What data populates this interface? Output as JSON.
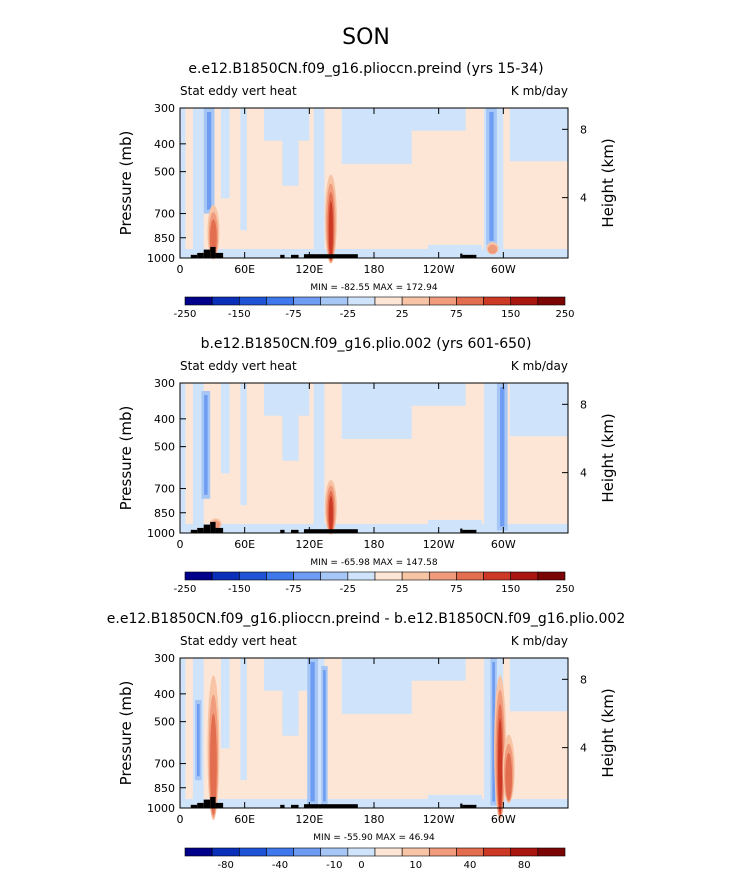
{
  "page_title": "SON",
  "colors": {
    "land": "#000000",
    "palette": [
      "#00008b",
      "#0a2fb8",
      "#1f53d6",
      "#3f78ec",
      "#6e9cf2",
      "#a6c6f5",
      "#cfe4fa",
      "#fde6d6",
      "#f8c4a6",
      "#f09c7c",
      "#e36d4f",
      "#cc3a25",
      "#a8160f",
      "#7b0505"
    ]
  },
  "chart_data": [
    {
      "type": "heatmap",
      "name": "panel-1",
      "title": "e.e12.B1850CN.f09_g16.plioccn.preind (yrs 15-34)",
      "left_label": "Stat eddy vert heat",
      "right_label": "K mb/day",
      "ylabel": "Pressure (mb)",
      "y2label": "Height (km)",
      "x_ticks": [
        "0",
        "60E",
        "120E",
        "180",
        "120W",
        "60W"
      ],
      "y_ticks": [
        "300",
        "400",
        "500",
        "700",
        "850",
        "1000"
      ],
      "y2_ticks": [
        "8",
        "4"
      ],
      "stats": "MIN = -82.55   MAX = 172.94",
      "colorbar_labels": [
        "-250",
        "-150",
        "-75",
        "-25",
        "25",
        "75",
        "150",
        "250"
      ],
      "hotspots": [
        {
          "lon": 31,
          "p_top": 620,
          "p_bot": 960,
          "v": 2
        },
        {
          "lon": 140,
          "p_top": 470,
          "p_bot": 960,
          "v": 3
        },
        {
          "lon": 290,
          "p_top": 870,
          "p_bot": 960,
          "v": 1
        }
      ],
      "coldspots": [
        {
          "lon_from": 22,
          "lon_to": 32,
          "p_top": 300,
          "p_bot": 700
        },
        {
          "lon_from": 284,
          "lon_to": 294,
          "p_top": 300,
          "p_bot": 900
        }
      ]
    },
    {
      "type": "heatmap",
      "name": "panel-2",
      "title": "b.e12.B1850CN.f09_g16.plio.002 (yrs 601-650)",
      "left_label": "Stat eddy vert heat",
      "right_label": "K mb/day",
      "ylabel": "Pressure (mb)",
      "y2label": "Height (km)",
      "x_ticks": [
        "0",
        "60E",
        "120E",
        "180",
        "120W",
        "60W"
      ],
      "y_ticks": [
        "300",
        "400",
        "500",
        "700",
        "850",
        "1000"
      ],
      "y2_ticks": [
        "8",
        "4"
      ],
      "stats": "MIN = -65.98   MAX = 147.58",
      "colorbar_labels": [
        "-250",
        "-150",
        "-75",
        "-25",
        "25",
        "75",
        "150",
        "250"
      ],
      "hotspots": [
        {
          "lon": 140,
          "p_top": 620,
          "p_bot": 960,
          "v": 3
        },
        {
          "lon": 33,
          "p_top": 880,
          "p_bot": 960,
          "v": 1
        }
      ],
      "coldspots": [
        {
          "lon_from": 294,
          "lon_to": 304,
          "p_top": 300,
          "p_bot": 980
        },
        {
          "lon_from": 20,
          "lon_to": 28,
          "p_top": 320,
          "p_bot": 760
        }
      ]
    },
    {
      "type": "heatmap",
      "name": "panel-3",
      "title": "e.e12.B1850CN.f09_g16.plioccn.preind - b.e12.B1850CN.f09_g16.plio.002",
      "left_label": "Stat eddy vert heat",
      "right_label": "K mb/day",
      "ylabel": "Pressure (mb)",
      "y2label": "Height (km)",
      "x_ticks": [
        "0",
        "60E",
        "120E",
        "180",
        "120W",
        "60W"
      ],
      "y_ticks": [
        "300",
        "400",
        "500",
        "700",
        "850",
        "1000"
      ],
      "y2_ticks": [
        "8",
        "4"
      ],
      "stats": "MIN = -55.90   MAX = 46.94",
      "colorbar_labels": [
        "-80",
        "-40",
        "-10",
        "0",
        "10",
        "40",
        "80"
      ],
      "hotspots": [
        {
          "lon": 31,
          "p_top": 300,
          "p_bot": 960,
          "v": 2
        },
        {
          "lon": 297,
          "p_top": 300,
          "p_bot": 960,
          "v": 3
        },
        {
          "lon": 305,
          "p_top": 520,
          "p_bot": 900,
          "v": 2
        }
      ],
      "coldspots": [
        {
          "lon_from": 118,
          "lon_to": 128,
          "p_top": 300,
          "p_bot": 980
        },
        {
          "lon_from": 131,
          "lon_to": 137,
          "p_top": 320,
          "p_bot": 980
        },
        {
          "lon_from": 288,
          "lon_to": 294,
          "p_top": 300,
          "p_bot": 980
        },
        {
          "lon_from": 14,
          "lon_to": 20,
          "p_top": 420,
          "p_bot": 800
        }
      ]
    }
  ]
}
